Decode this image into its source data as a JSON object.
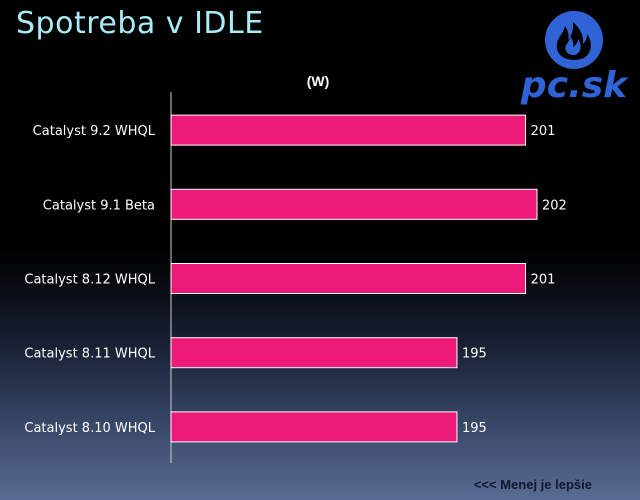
{
  "title": "Spotreba v IDLE",
  "logo": {
    "text": "pc.sk",
    "icon": "flame-icon",
    "color": "#2f63d6"
  },
  "note": "<<< Menej je lepšie",
  "chart_data": {
    "type": "bar",
    "orientation": "horizontal",
    "title": "Spotreba v IDLE",
    "unit": "(W)",
    "xlabel": "",
    "ylabel": "",
    "categories": [
      "Catalyst 9.2 WHQL",
      "Catalyst 9.1 Beta",
      "Catalyst 8.12 WHQL",
      "Catalyst 8.11 WHQL",
      "Catalyst 8.10 WHQL"
    ],
    "values": [
      201,
      202,
      201,
      195,
      195
    ],
    "xlim": [
      170,
      204
    ],
    "bar_color": "#ee1a7a",
    "grid": false,
    "legend": "none"
  }
}
